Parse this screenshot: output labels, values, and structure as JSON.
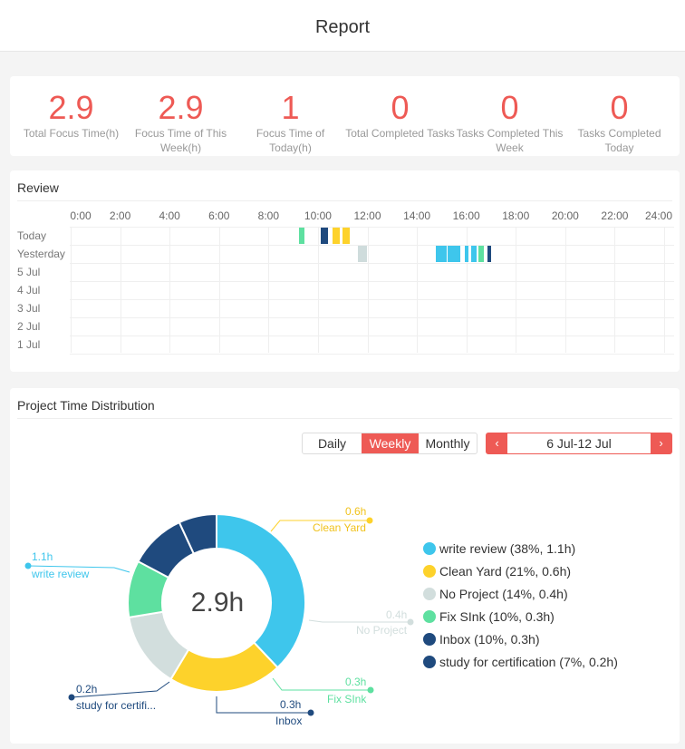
{
  "header": {
    "title": "Report"
  },
  "stats": [
    {
      "value": "2.9",
      "label": "Total Focus Time(h)"
    },
    {
      "value": "2.9",
      "label": "Focus Time of This Week(h)"
    },
    {
      "value": "1",
      "label": "Focus Time of Today(h)"
    },
    {
      "value": "0",
      "label": "Total Completed Tasks"
    },
    {
      "value": "0",
      "label": "Tasks Completed This Week"
    },
    {
      "value": "0",
      "label": "Tasks Completed Today"
    }
  ],
  "review": {
    "title": "Review",
    "time_labels": [
      "0:00",
      "2:00",
      "4:00",
      "6:00",
      "8:00",
      "10:00",
      "12:00",
      "14:00",
      "16:00",
      "18:00",
      "20:00",
      "22:00",
      "24:00"
    ],
    "rows": [
      "Today",
      "Yesterday",
      "5 Jul",
      "4 Jul",
      "3 Jul",
      "2 Jul",
      "1 Jul"
    ],
    "sessions": [
      {
        "row": 0,
        "start": 9.25,
        "end": 9.45,
        "color": "#5ee0a0"
      },
      {
        "row": 0,
        "start": 10.1,
        "end": 10.4,
        "color": "#1f4a7e"
      },
      {
        "row": 0,
        "start": 10.6,
        "end": 10.9,
        "color": "#fdd22b"
      },
      {
        "row": 0,
        "start": 11.0,
        "end": 11.3,
        "color": "#fdd22b"
      },
      {
        "row": 1,
        "start": 11.6,
        "end": 12.0,
        "color": "#cfdcdc"
      },
      {
        "row": 1,
        "start": 14.75,
        "end": 15.2,
        "color": "#3ec6ec"
      },
      {
        "row": 1,
        "start": 15.25,
        "end": 15.75,
        "color": "#3ec6ec"
      },
      {
        "row": 1,
        "start": 15.95,
        "end": 16.1,
        "color": "#3ec6ec"
      },
      {
        "row": 1,
        "start": 16.2,
        "end": 16.4,
        "color": "#3ec6ec"
      },
      {
        "row": 1,
        "start": 16.5,
        "end": 16.7,
        "color": "#5ee0a0"
      },
      {
        "row": 1,
        "start": 16.85,
        "end": 17.0,
        "color": "#1f4a7e"
      }
    ]
  },
  "distribution": {
    "title": "Project Time Distribution",
    "periods": [
      "Daily",
      "Weekly",
      "Monthly"
    ],
    "active_period": "Weekly",
    "date_range": "6 Jul-12 Jul",
    "prev_icon": "‹",
    "next_icon": "›",
    "total": "2.9h",
    "chart_data": {
      "type": "pie",
      "values": [
        1.1,
        0.6,
        0.4,
        0.3,
        0.3,
        0.2
      ],
      "percent": [
        38,
        21,
        14,
        10,
        10,
        7
      ],
      "categories": [
        "write review",
        "Clean Yard",
        "No Project",
        "Fix SInk",
        "Inbox",
        "study for certification"
      ],
      "colors": [
        "#3ec6ec",
        "#fdd22b",
        "#d2dedd",
        "#5ee0a0",
        "#1f4a7e",
        "#1f4a7e"
      ],
      "center_label": "2.9h"
    },
    "callouts": [
      {
        "value": "1.1h",
        "name": "write review"
      },
      {
        "value": "0.6h",
        "name": "Clean Yard"
      },
      {
        "value": "0.4h",
        "name": "No Project"
      },
      {
        "value": "0.3h",
        "name": "Fix SInk"
      },
      {
        "value": "0.3h",
        "name": "Inbox"
      },
      {
        "value": "0.2h",
        "name": "study for certifi..."
      }
    ],
    "legend": [
      {
        "label": "write review (38%, 1.1h)",
        "color": "#3ec6ec"
      },
      {
        "label": "Clean Yard (21%, 0.6h)",
        "color": "#fdd22b"
      },
      {
        "label": "No Project (14%, 0.4h)",
        "color": "#d2dedd"
      },
      {
        "label": "Fix SInk (10%, 0.3h)",
        "color": "#5ee0a0"
      },
      {
        "label": "Inbox (10%, 0.3h)",
        "color": "#1f4a7e"
      },
      {
        "label": "study for certification (7%, 0.2h)",
        "color": "#1f4a7e"
      }
    ]
  }
}
